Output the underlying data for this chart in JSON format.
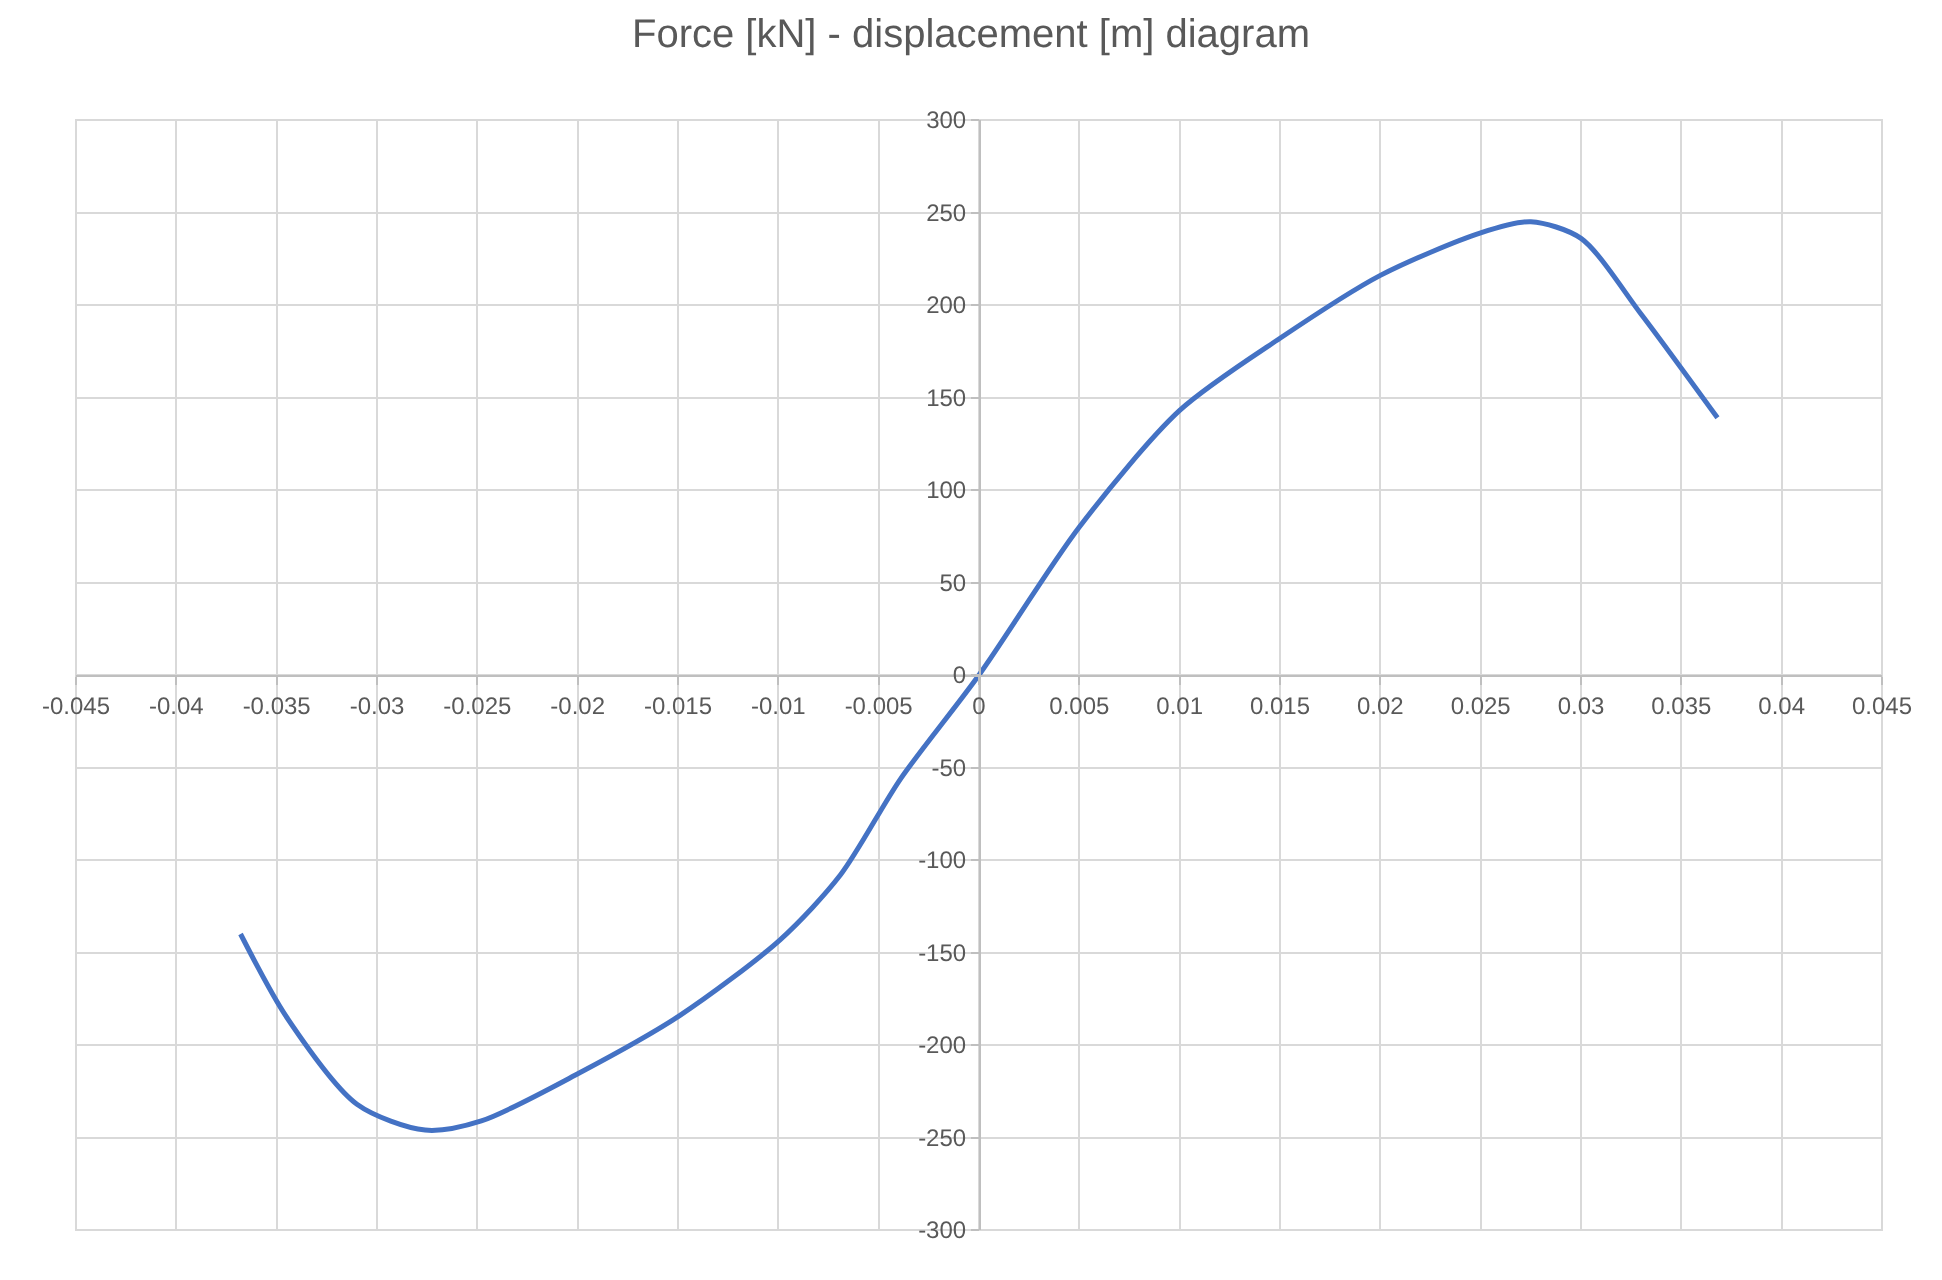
{
  "chart_data": {
    "type": "line",
    "title": "Force [kN] - displacement [m] diagram",
    "x": [
      -0.0368,
      -0.0345,
      -0.031,
      -0.0276,
      -0.0248,
      -0.0199,
      -0.0149,
      -0.0099,
      -0.0069,
      -0.0039,
      0,
      0.005,
      0.01,
      0.015,
      0.02,
      0.025,
      0.0275,
      0.03,
      0.033,
      0.0368
    ],
    "series": [
      {
        "color": "#4472c4",
        "values": [
          -140,
          -185,
          -232,
          -246,
          -241,
          -215,
          -184,
          -143,
          -108,
          -56,
          0,
          80,
          143,
          182,
          216,
          239,
          245,
          236,
          195,
          139
        ]
      }
    ],
    "xlim": [
      -0.045,
      0.045
    ],
    "xticks": [
      -0.045,
      -0.04,
      -0.035,
      -0.03,
      -0.025,
      -0.02,
      -0.015,
      -0.01,
      -0.005,
      0,
      0.005,
      0.01,
      0.015,
      0.02,
      0.025,
      0.03,
      0.035,
      0.04,
      0.045
    ],
    "ylim": [
      -300,
      300
    ],
    "yticks": [
      -300,
      -250,
      -200,
      -150,
      -100,
      -50,
      0,
      50,
      100,
      150,
      200,
      250,
      300
    ],
    "grid": true,
    "line_style": "solid"
  }
}
